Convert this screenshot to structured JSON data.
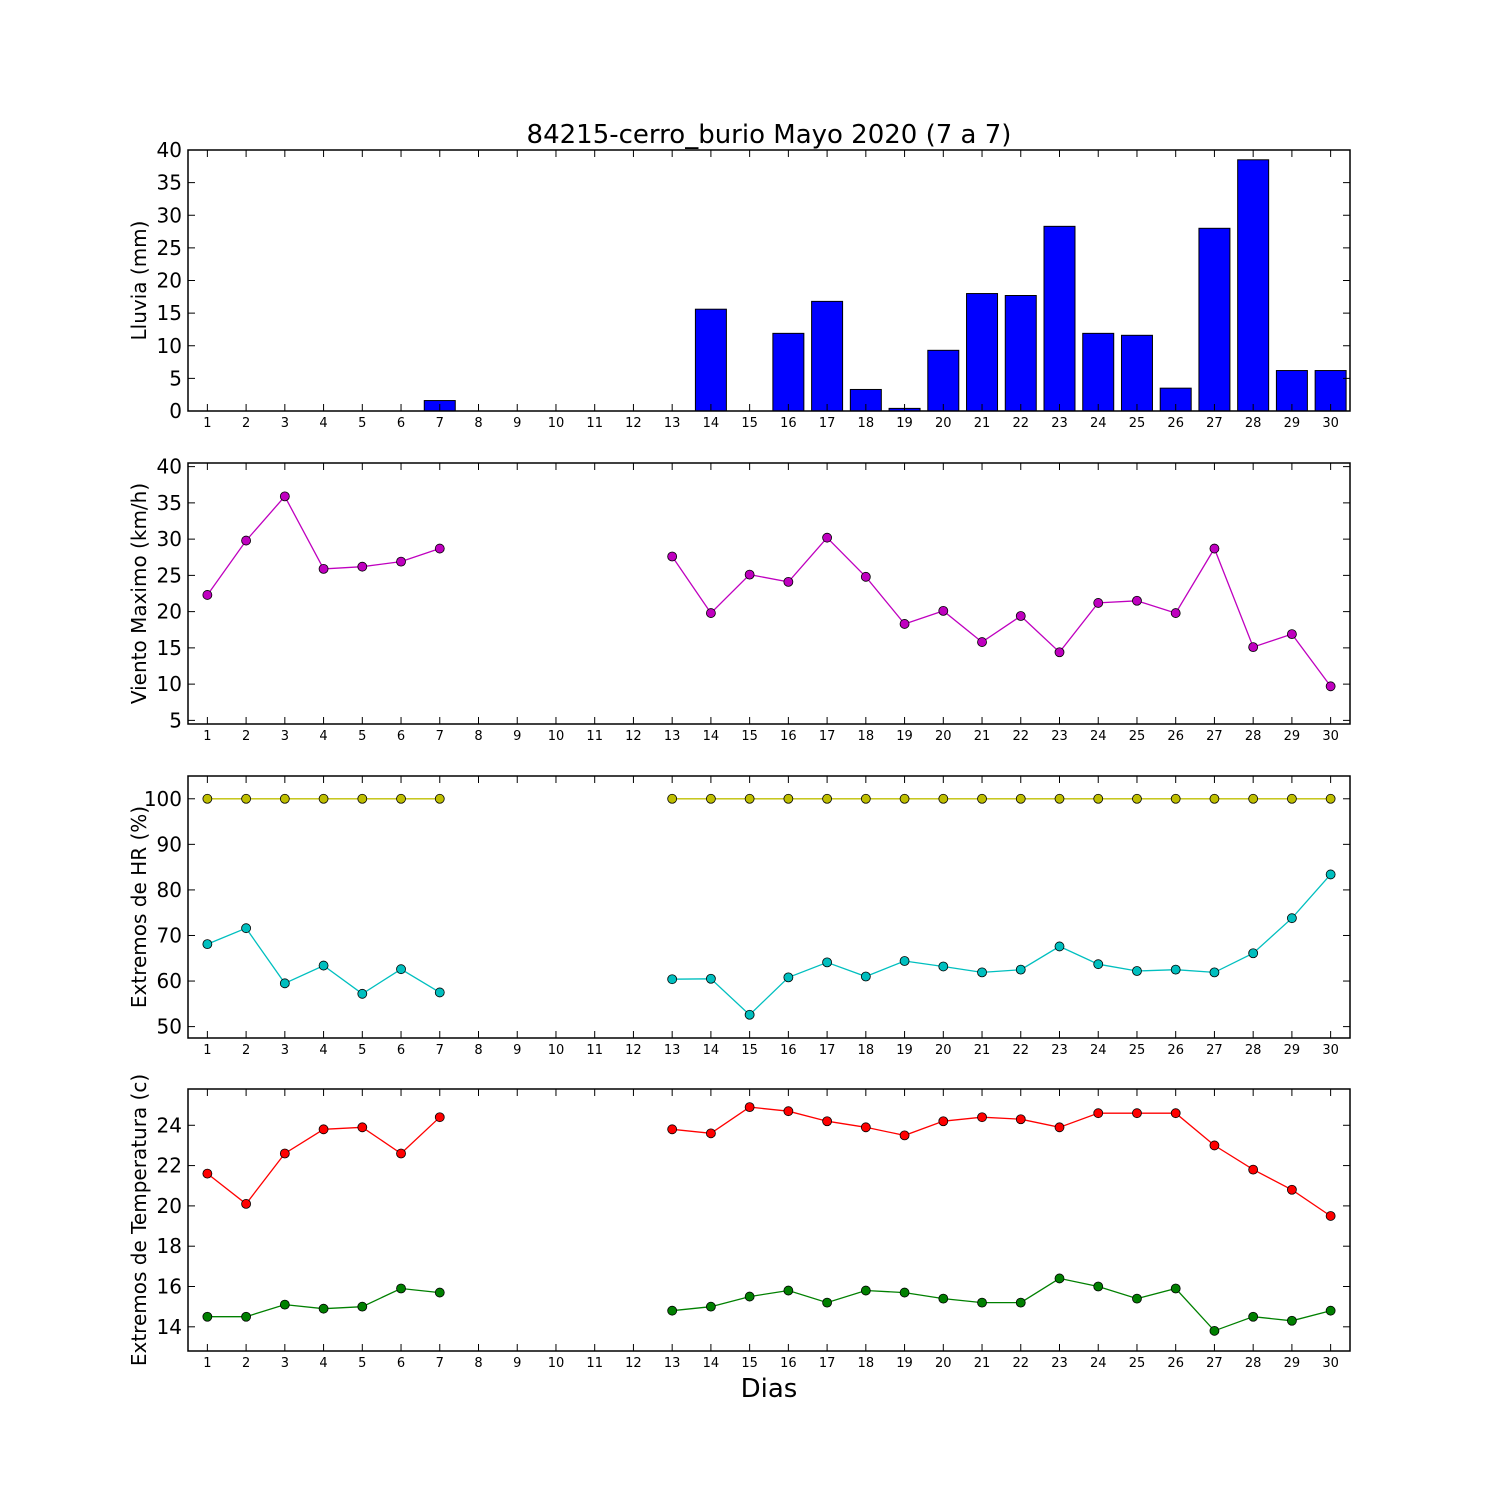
{
  "title": "84215-cerro_burio Mayo 2020  (7 a 7)",
  "xlabel": "Dias",
  "chart_data": [
    {
      "type": "bar",
      "ylabel": "Lluvia (mm)",
      "ylim": [
        0,
        40
      ],
      "yticks": [
        0,
        5,
        10,
        15,
        20,
        25,
        30,
        35,
        40
      ],
      "xlim": [
        0.5,
        30.5
      ],
      "x": [
        1,
        2,
        3,
        4,
        5,
        6,
        7,
        8,
        9,
        10,
        11,
        12,
        13,
        14,
        15,
        16,
        17,
        18,
        19,
        20,
        21,
        22,
        23,
        24,
        25,
        26,
        27,
        28,
        29,
        30
      ],
      "xticklabels": [
        "1",
        "2",
        "3",
        "4",
        "5",
        "6",
        "7",
        "8",
        "9",
        "10",
        "11",
        "12",
        "13",
        "14",
        "15",
        "16",
        "17",
        "18",
        "19",
        "20",
        "21",
        "22",
        "23",
        "24",
        "25",
        "26",
        "27",
        "28",
        "29",
        "30"
      ],
      "series": [
        {
          "color": "#0000ff",
          "values": [
            0,
            0,
            0,
            0,
            0,
            0,
            1.6,
            null,
            null,
            null,
            null,
            null,
            0,
            15.6,
            0,
            11.9,
            16.8,
            3.3,
            0.4,
            9.3,
            18.0,
            17.7,
            28.3,
            11.9,
            11.6,
            3.5,
            28.0,
            38.5,
            6.2,
            6.2
          ]
        }
      ]
    },
    {
      "type": "line",
      "ylabel": "Viento Maximo (km/h)",
      "ylim": [
        4.5,
        40.5
      ],
      "yticks": [
        5,
        10,
        15,
        20,
        25,
        30,
        35,
        40
      ],
      "xlim": [
        0.5,
        30.5
      ],
      "x": [
        1,
        2,
        3,
        4,
        5,
        6,
        7,
        8,
        9,
        10,
        11,
        12,
        13,
        14,
        15,
        16,
        17,
        18,
        19,
        20,
        21,
        22,
        23,
        24,
        25,
        26,
        27,
        28,
        29,
        30
      ],
      "xticklabels": [
        "1",
        "2",
        "3",
        "4",
        "5",
        "6",
        "7",
        "8",
        "9",
        "10",
        "11",
        "12",
        "13",
        "14",
        "15",
        "16",
        "17",
        "18",
        "19",
        "20",
        "21",
        "22",
        "23",
        "24",
        "25",
        "26",
        "27",
        "28",
        "29",
        "30"
      ],
      "series": [
        {
          "color": "#bf00bf",
          "values": [
            22.3,
            29.8,
            35.9,
            25.9,
            26.2,
            26.9,
            28.7,
            null,
            null,
            null,
            null,
            null,
            27.6,
            19.8,
            25.1,
            24.1,
            30.2,
            24.8,
            18.3,
            20.1,
            15.8,
            19.4,
            14.4,
            21.2,
            21.5,
            19.8,
            28.7,
            15.1,
            16.9,
            9.7
          ]
        }
      ]
    },
    {
      "type": "line",
      "ylabel": "Extremos de HR (%)",
      "ylim": [
        47.5,
        105
      ],
      "yticks": [
        50,
        60,
        70,
        80,
        90,
        100
      ],
      "xlim": [
        0.5,
        30.5
      ],
      "x": [
        1,
        2,
        3,
        4,
        5,
        6,
        7,
        8,
        9,
        10,
        11,
        12,
        13,
        14,
        15,
        16,
        17,
        18,
        19,
        20,
        21,
        22,
        23,
        24,
        25,
        26,
        27,
        28,
        29,
        30
      ],
      "xticklabels": [
        "1",
        "2",
        "3",
        "4",
        "5",
        "6",
        "7",
        "8",
        "9",
        "10",
        "11",
        "12",
        "13",
        "14",
        "15",
        "16",
        "17",
        "18",
        "19",
        "20",
        "21",
        "22",
        "23",
        "24",
        "25",
        "26",
        "27",
        "28",
        "29",
        "30"
      ],
      "series": [
        {
          "color": "#bfbf00",
          "values": [
            100,
            100,
            100,
            100,
            100,
            100,
            100,
            null,
            null,
            null,
            null,
            null,
            100,
            100,
            100,
            100,
            100,
            100,
            100,
            100,
            100,
            100,
            100,
            100,
            100,
            100,
            100,
            100,
            100,
            100
          ]
        },
        {
          "color": "#00bfbf",
          "values": [
            68.1,
            71.6,
            59.5,
            63.4,
            57.2,
            62.6,
            57.5,
            null,
            null,
            null,
            null,
            null,
            60.4,
            60.5,
            52.6,
            60.8,
            64.1,
            61.0,
            64.4,
            63.2,
            61.9,
            62.5,
            67.6,
            63.7,
            62.2,
            62.5,
            61.9,
            66.1,
            73.8,
            83.4
          ]
        }
      ]
    },
    {
      "type": "line",
      "ylabel": "Extremos de Temperatura (c)",
      "ylim": [
        12.8,
        25.8
      ],
      "yticks": [
        14,
        16,
        18,
        20,
        22,
        24
      ],
      "xlim": [
        0.5,
        30.5
      ],
      "x": [
        1,
        2,
        3,
        4,
        5,
        6,
        7,
        8,
        9,
        10,
        11,
        12,
        13,
        14,
        15,
        16,
        17,
        18,
        19,
        20,
        21,
        22,
        23,
        24,
        25,
        26,
        27,
        28,
        29,
        30
      ],
      "xticklabels": [
        "1",
        "2",
        "3",
        "4",
        "5",
        "6",
        "7",
        "8",
        "9",
        "10",
        "11",
        "12",
        "13",
        "14",
        "15",
        "16",
        "17",
        "18",
        "19",
        "20",
        "21",
        "22",
        "23",
        "24",
        "25",
        "26",
        "27",
        "28",
        "29",
        "30"
      ],
      "series": [
        {
          "color": "#ff0000",
          "values": [
            21.6,
            20.1,
            22.6,
            23.8,
            23.9,
            22.6,
            24.4,
            null,
            null,
            null,
            null,
            null,
            23.8,
            23.6,
            24.9,
            24.7,
            24.2,
            23.9,
            23.5,
            24.2,
            24.4,
            24.3,
            23.9,
            24.6,
            24.6,
            24.6,
            23.0,
            21.8,
            20.8,
            19.5
          ]
        },
        {
          "color": "#008000",
          "values": [
            14.5,
            14.5,
            15.1,
            14.9,
            15.0,
            15.9,
            15.7,
            null,
            null,
            null,
            null,
            null,
            14.8,
            15.0,
            15.5,
            15.8,
            15.2,
            15.8,
            15.7,
            15.4,
            15.2,
            15.2,
            16.4,
            16.0,
            15.4,
            15.9,
            13.8,
            14.5,
            14.3,
            14.8
          ]
        }
      ]
    }
  ]
}
